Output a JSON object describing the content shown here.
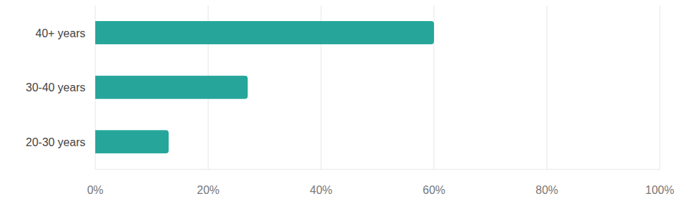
{
  "chart_data": {
    "type": "bar",
    "orientation": "horizontal",
    "categories": [
      "40+ years",
      "30-40 years",
      "20-30 years"
    ],
    "values": [
      60,
      27,
      13
    ],
    "color": "#26a69a",
    "xlim": [
      0,
      100
    ],
    "xticks": [
      {
        "value": 0,
        "label": "0%"
      },
      {
        "value": 20,
        "label": "20%"
      },
      {
        "value": 40,
        "label": "40%"
      },
      {
        "value": 60,
        "label": "60%"
      },
      {
        "value": 80,
        "label": "80%"
      },
      {
        "value": 100,
        "label": "100%"
      }
    ],
    "grid": true
  }
}
